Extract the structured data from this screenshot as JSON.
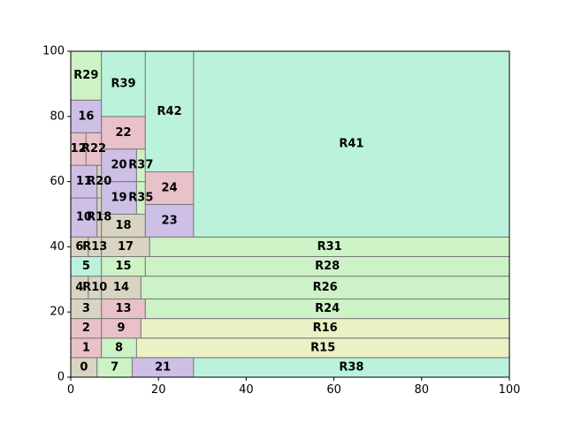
{
  "chart_data": {
    "type": "treemap",
    "title": "",
    "xlabel": "",
    "ylabel": "",
    "xlim": [
      0,
      100
    ],
    "ylim": [
      0,
      100
    ],
    "x_ticks": [
      0,
      20,
      40,
      60,
      80,
      100
    ],
    "y_ticks": [
      0,
      20,
      40,
      60,
      80,
      100
    ],
    "grid": false,
    "palette": {
      "green": "#cdf2c6",
      "mint": "#bbf2db",
      "pink": "#e8c2c8",
      "lavender": "#cdbfe6",
      "tan": "#d9d3c2",
      "yellow": "#ebf0c5"
    },
    "rects": [
      {
        "label": "0",
        "x0": 0,
        "x1": 6,
        "y0": 0,
        "y1": 6,
        "color": "tan"
      },
      {
        "label": "7",
        "x0": 6,
        "x1": 14,
        "y0": 0,
        "y1": 6,
        "color": "green"
      },
      {
        "label": "21",
        "x0": 14,
        "x1": 28,
        "y0": 0,
        "y1": 6,
        "color": "lavender"
      },
      {
        "label": "R38",
        "x0": 28,
        "x1": 100,
        "y0": 0,
        "y1": 6,
        "color": "mint"
      },
      {
        "label": "1",
        "x0": 0,
        "x1": 7,
        "y0": 6,
        "y1": 12,
        "color": "pink"
      },
      {
        "label": "8",
        "x0": 7,
        "x1": 15,
        "y0": 6,
        "y1": 12,
        "color": "green"
      },
      {
        "label": "R15",
        "x0": 15,
        "x1": 100,
        "y0": 6,
        "y1": 12,
        "color": "yellow"
      },
      {
        "label": "2",
        "x0": 0,
        "x1": 7,
        "y0": 12,
        "y1": 18,
        "color": "pink"
      },
      {
        "label": "9",
        "x0": 7,
        "x1": 16,
        "y0": 12,
        "y1": 18,
        "color": "pink"
      },
      {
        "label": "R16",
        "x0": 16,
        "x1": 100,
        "y0": 12,
        "y1": 18,
        "color": "yellow"
      },
      {
        "label": "3",
        "x0": 0,
        "x1": 7,
        "y0": 18,
        "y1": 24,
        "color": "tan"
      },
      {
        "label": "13",
        "x0": 7,
        "x1": 17,
        "y0": 18,
        "y1": 24,
        "color": "pink"
      },
      {
        "label": "R24",
        "x0": 17,
        "x1": 100,
        "y0": 18,
        "y1": 24,
        "color": "green"
      },
      {
        "label": "4",
        "x0": 0,
        "x1": 4,
        "y0": 24,
        "y1": 31,
        "color": "tan"
      },
      {
        "label": "R10",
        "x0": 4,
        "x1": 7,
        "y0": 24,
        "y1": 31,
        "color": "tan"
      },
      {
        "label": "14",
        "x0": 7,
        "x1": 16,
        "y0": 24,
        "y1": 31,
        "color": "tan"
      },
      {
        "label": "R26",
        "x0": 16,
        "x1": 100,
        "y0": 24,
        "y1": 31,
        "color": "green"
      },
      {
        "label": "5",
        "x0": 0,
        "x1": 7,
        "y0": 31,
        "y1": 37,
        "color": "mint"
      },
      {
        "label": "15",
        "x0": 7,
        "x1": 17,
        "y0": 31,
        "y1": 37,
        "color": "green"
      },
      {
        "label": "R28",
        "x0": 17,
        "x1": 100,
        "y0": 31,
        "y1": 37,
        "color": "green"
      },
      {
        "label": "6",
        "x0": 0,
        "x1": 4,
        "y0": 37,
        "y1": 43,
        "color": "tan"
      },
      {
        "label": "R13",
        "x0": 4,
        "x1": 7,
        "y0": 37,
        "y1": 43,
        "color": "tan"
      },
      {
        "label": "17",
        "x0": 7,
        "x1": 18,
        "y0": 37,
        "y1": 43,
        "color": "tan"
      },
      {
        "label": "R31",
        "x0": 18,
        "x1": 100,
        "y0": 37,
        "y1": 43,
        "color": "green"
      },
      {
        "label": "10",
        "x0": 0,
        "x1": 6,
        "y0": 43,
        "y1": 55,
        "color": "lavender"
      },
      {
        "label": "R18",
        "x0": 6,
        "x1": 7,
        "y0": 43,
        "y1": 55,
        "color": "tan"
      },
      {
        "label": "11",
        "x0": 0,
        "x1": 6,
        "y0": 55,
        "y1": 65,
        "color": "lavender"
      },
      {
        "label": "R20",
        "x0": 6,
        "x1": 7,
        "y0": 55,
        "y1": 65,
        "color": "tan"
      },
      {
        "label": "12",
        "x0": 0,
        "x1": 3.5,
        "y0": 65,
        "y1": 75,
        "color": "pink"
      },
      {
        "label": "R22",
        "x0": 3.5,
        "x1": 7,
        "y0": 65,
        "y1": 75,
        "color": "pink"
      },
      {
        "label": "16",
        "x0": 0,
        "x1": 7,
        "y0": 75,
        "y1": 85,
        "color": "lavender"
      },
      {
        "label": "R29",
        "x0": 0,
        "x1": 7,
        "y0": 85,
        "y1": 100,
        "color": "green"
      },
      {
        "label": "18",
        "x0": 7,
        "x1": 17,
        "y0": 43,
        "y1": 50,
        "color": "tan"
      },
      {
        "label": "19",
        "x0": 7,
        "x1": 15,
        "y0": 50,
        "y1": 60,
        "color": "lavender"
      },
      {
        "label": "R35",
        "x0": 15,
        "x1": 17,
        "y0": 50,
        "y1": 60,
        "color": "green"
      },
      {
        "label": "20",
        "x0": 7,
        "x1": 15,
        "y0": 60,
        "y1": 70,
        "color": "lavender"
      },
      {
        "label": "R37",
        "x0": 15,
        "x1": 17,
        "y0": 60,
        "y1": 70,
        "color": "green"
      },
      {
        "label": "22",
        "x0": 7,
        "x1": 17,
        "y0": 70,
        "y1": 80,
        "color": "pink"
      },
      {
        "label": "R39",
        "x0": 7,
        "x1": 17,
        "y0": 80,
        "y1": 100,
        "color": "mint"
      },
      {
        "label": "23",
        "x0": 17,
        "x1": 28,
        "y0": 43,
        "y1": 53,
        "color": "lavender"
      },
      {
        "label": "24",
        "x0": 17,
        "x1": 28,
        "y0": 53,
        "y1": 63,
        "color": "pink"
      },
      {
        "label": "R42",
        "x0": 17,
        "x1": 28,
        "y0": 63,
        "y1": 100,
        "color": "mint"
      },
      {
        "label": "R41",
        "x0": 28,
        "x1": 100,
        "y0": 43,
        "y1": 100,
        "color": "mint"
      }
    ]
  }
}
